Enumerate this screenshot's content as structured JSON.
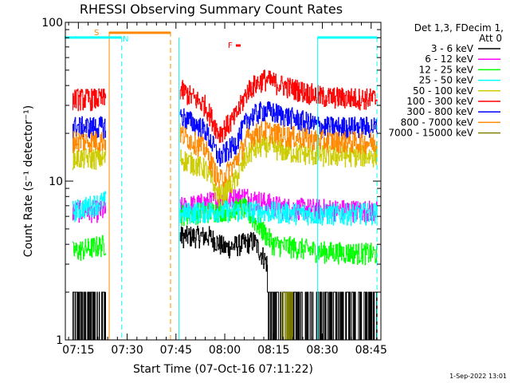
{
  "chart_data": {
    "type": "line",
    "title": "RHESSI Observing Summary Count Rates",
    "xlabel": "Start Time (07-Oct-16 07:11:22)",
    "ylabel": "Count Rate (s⁻¹ detector⁻¹)",
    "yscale": "log",
    "ylim": [
      1,
      100
    ],
    "xlim_minutes": [
      7.1833,
      8.8
    ],
    "x_ticks": [
      {
        "value": 7.25,
        "label": "07:15"
      },
      {
        "value": 7.5,
        "label": "07:30"
      },
      {
        "value": 7.75,
        "label": "07:45"
      },
      {
        "value": 8.0,
        "label": "08:00"
      },
      {
        "value": 8.25,
        "label": "08:15"
      },
      {
        "value": 8.5,
        "label": "08:30"
      },
      {
        "value": 8.75,
        "label": "08:45"
      }
    ],
    "y_ticks": [
      {
        "value": 1,
        "label": "1"
      },
      {
        "value": 10,
        "label": "10"
      },
      {
        "value": 100,
        "label": "100"
      }
    ],
    "legend": {
      "header": "Det 1,3, FDecim 1,",
      "header2": "Att 0",
      "placement": "right",
      "entries": [
        {
          "label": "3 - 6 keV",
          "color": "#000000"
        },
        {
          "label": "6 - 12 keV",
          "color": "#ff00ff"
        },
        {
          "label": "12 - 25 keV",
          "color": "#00ff00"
        },
        {
          "label": "25 - 50 keV",
          "color": "#00ffff"
        },
        {
          "label": "50 - 100 keV",
          "color": "#cccc00"
        },
        {
          "label": "100 - 300 keV",
          "color": "#ff0000"
        },
        {
          "label": "300 - 800 keV",
          "color": "#0000ff"
        },
        {
          "label": "800 - 7000 keV",
          "color": "#ff8800"
        },
        {
          "label": "7000 - 15000 keV",
          "color": "#808000"
        }
      ]
    },
    "annotations": {
      "saa_label": "S",
      "night_label": "N",
      "flare_label": "F",
      "saa_interval": [
        7.408,
        7.722
      ],
      "night_intervals": [
        [
          7.18,
          7.472
        ],
        [
          8.475,
          8.78
        ]
      ],
      "saa_color": "#ff8800",
      "night_color": "#00ffff",
      "flare_color": "#ff0000"
    },
    "data_gaps": [
      [
        7.408,
        7.765
      ]
    ],
    "series": [
      {
        "name": "3 - 6 keV",
        "color": "#000000",
        "segments": [
          [
            7.22,
            7.39
          ],
          [
            7.77,
            8.78
          ]
        ],
        "profile": [
          [
            7.22,
            1.5
          ],
          [
            7.39,
            1.5
          ],
          [
            7.77,
            4.5
          ],
          [
            7.92,
            4.5
          ],
          [
            8.0,
            3.8
          ],
          [
            8.15,
            4.2
          ],
          [
            8.3,
            2.0
          ],
          [
            8.5,
            1.4
          ],
          [
            8.78,
            1.4
          ]
        ]
      },
      {
        "name": "6 - 12 keV",
        "color": "#ff00ff",
        "segments": [
          [
            7.22,
            7.39
          ],
          [
            7.77,
            8.78
          ]
        ],
        "profile": [
          [
            7.22,
            6.5
          ],
          [
            7.39,
            6.5
          ],
          [
            7.77,
            6.8
          ],
          [
            7.95,
            7.5
          ],
          [
            8.1,
            8.0
          ],
          [
            8.3,
            6.8
          ],
          [
            8.78,
            6.5
          ]
        ]
      },
      {
        "name": "12 - 25 keV",
        "color": "#00ff00",
        "segments": [
          [
            7.22,
            7.39
          ],
          [
            7.77,
            8.78
          ]
        ],
        "profile": [
          [
            7.22,
            3.6
          ],
          [
            7.39,
            4.0
          ],
          [
            7.77,
            6.2
          ],
          [
            7.95,
            6.5
          ],
          [
            8.1,
            6.8
          ],
          [
            8.25,
            4.0
          ],
          [
            8.5,
            3.6
          ],
          [
            8.78,
            3.5
          ]
        ]
      },
      {
        "name": "25 - 50 keV",
        "color": "#00ffff",
        "segments": [
          [
            7.22,
            7.39
          ],
          [
            7.77,
            8.78
          ]
        ],
        "profile": [
          [
            7.22,
            6.5
          ],
          [
            7.39,
            7.5
          ],
          [
            7.77,
            6.3
          ],
          [
            7.95,
            6.5
          ],
          [
            8.15,
            6.5
          ],
          [
            8.5,
            6.2
          ],
          [
            8.78,
            6.3
          ]
        ]
      },
      {
        "name": "50 - 100 keV",
        "color": "#cccc00",
        "segments": [
          [
            7.22,
            7.39
          ],
          [
            7.77,
            8.78
          ]
        ],
        "profile": [
          [
            7.22,
            14.0
          ],
          [
            7.39,
            14.0
          ],
          [
            7.77,
            14.0
          ],
          [
            7.9,
            12.0
          ],
          [
            7.97,
            8.0
          ],
          [
            8.05,
            10.0
          ],
          [
            8.12,
            15.0
          ],
          [
            8.2,
            17.0
          ],
          [
            8.3,
            15.5
          ],
          [
            8.5,
            14.5
          ],
          [
            8.78,
            14.5
          ]
        ]
      },
      {
        "name": "100 - 300 keV",
        "color": "#ff0000",
        "segments": [
          [
            7.22,
            7.39
          ],
          [
            7.77,
            8.78
          ]
        ],
        "profile": [
          [
            7.22,
            33.0
          ],
          [
            7.39,
            33.0
          ],
          [
            7.77,
            38.0
          ],
          [
            7.9,
            30.0
          ],
          [
            7.97,
            20.0
          ],
          [
            8.05,
            25.0
          ],
          [
            8.12,
            38.0
          ],
          [
            8.2,
            44.0
          ],
          [
            8.3,
            40.0
          ],
          [
            8.5,
            34.0
          ],
          [
            8.78,
            33.0
          ]
        ]
      },
      {
        "name": "300 - 800 keV",
        "color": "#0000ff",
        "segments": [
          [
            7.22,
            7.39
          ],
          [
            7.77,
            8.78
          ]
        ],
        "profile": [
          [
            7.22,
            22.0
          ],
          [
            7.39,
            22.0
          ],
          [
            7.77,
            26.0
          ],
          [
            7.9,
            21.0
          ],
          [
            7.97,
            14.0
          ],
          [
            8.05,
            17.0
          ],
          [
            8.12,
            25.0
          ],
          [
            8.2,
            28.0
          ],
          [
            8.3,
            26.0
          ],
          [
            8.5,
            22.0
          ],
          [
            8.78,
            22.0
          ]
        ]
      },
      {
        "name": "800 - 7000 keV",
        "color": "#ff8800",
        "segments": [
          [
            7.22,
            7.39
          ],
          [
            7.77,
            8.78
          ]
        ],
        "profile": [
          [
            7.22,
            18.0
          ],
          [
            7.39,
            18.0
          ],
          [
            7.77,
            20.0
          ],
          [
            7.9,
            16.0
          ],
          [
            7.97,
            10.0
          ],
          [
            8.05,
            13.0
          ],
          [
            8.12,
            19.0
          ],
          [
            8.2,
            21.0
          ],
          [
            8.3,
            19.5
          ],
          [
            8.5,
            18.0
          ],
          [
            8.78,
            17.5
          ]
        ]
      },
      {
        "name": "7000 - 15000 keV",
        "color": "#808000",
        "segments": [
          [
            8.28,
            8.35
          ]
        ],
        "profile": [
          [
            8.28,
            1.3
          ],
          [
            8.35,
            1.3
          ]
        ]
      }
    ]
  },
  "footer": {
    "date_stamp": "1-Sep-2022 13:01"
  }
}
